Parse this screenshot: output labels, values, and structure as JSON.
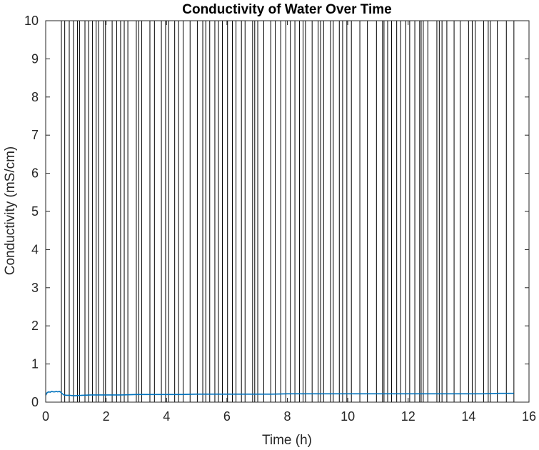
{
  "chart_data": {
    "type": "line",
    "title": "Conductivity of Water Over Time",
    "xlabel": "Time (h)",
    "ylabel": "Conductivity (mS/cm)",
    "xlim": [
      0,
      16
    ],
    "ylim": [
      0,
      10
    ],
    "xticks": [
      0,
      2,
      4,
      6,
      8,
      10,
      12,
      14,
      16
    ],
    "yticks": [
      0,
      1,
      2,
      3,
      4,
      5,
      6,
      7,
      8,
      9,
      10
    ],
    "grid": false,
    "series_color": "#0072BD",
    "vline_color": "#000000",
    "series": [
      {
        "x": [
          0.0,
          0.05,
          0.1,
          0.15,
          0.2,
          0.25,
          0.3,
          0.35,
          0.4,
          0.45,
          0.5,
          0.55,
          0.6,
          0.7,
          0.8,
          0.9,
          1.0,
          1.2,
          1.5,
          2.0,
          2.5,
          3.0,
          3.5,
          4.0,
          4.5,
          5.0,
          5.5,
          6.0,
          6.5,
          7.0,
          7.5,
          8.0,
          8.5,
          9.0,
          9.5,
          10.0,
          10.5,
          11.0,
          11.5,
          12.0,
          12.5,
          13.0,
          13.5,
          14.0,
          14.5,
          15.0,
          15.5
        ],
        "values": [
          0.18,
          0.25,
          0.27,
          0.26,
          0.28,
          0.27,
          0.27,
          0.28,
          0.27,
          0.28,
          0.26,
          0.22,
          0.19,
          0.18,
          0.18,
          0.17,
          0.17,
          0.18,
          0.19,
          0.19,
          0.19,
          0.2,
          0.2,
          0.2,
          0.2,
          0.21,
          0.21,
          0.21,
          0.21,
          0.21,
          0.21,
          0.22,
          0.22,
          0.22,
          0.22,
          0.22,
          0.22,
          0.22,
          0.22,
          0.22,
          0.22,
          0.22,
          0.22,
          0.22,
          0.22,
          0.23,
          0.23
        ]
      }
    ],
    "vertical_lines_x": [
      0.52,
      0.63,
      0.78,
      0.92,
      1.05,
      1.12,
      1.3,
      1.42,
      1.55,
      1.67,
      1.75,
      1.92,
      1.98,
      2.2,
      2.35,
      2.48,
      2.6,
      2.72,
      3.0,
      3.08,
      3.18,
      3.45,
      3.6,
      3.83,
      3.97,
      4.07,
      4.27,
      4.4,
      4.55,
      4.78,
      5.02,
      5.2,
      5.3,
      5.43,
      5.6,
      5.72,
      5.85,
      6.02,
      6.18,
      6.3,
      6.48,
      6.6,
      6.85,
      6.92,
      7.02,
      7.22,
      7.45,
      7.6,
      7.78,
      7.95,
      8.1,
      8.25,
      8.4,
      8.52,
      8.6,
      8.82,
      9.02,
      9.1,
      9.2,
      9.43,
      9.52,
      9.72,
      9.83,
      9.97,
      10.12,
      10.4,
      10.65,
      10.95,
      11.15,
      11.2,
      11.32,
      11.45,
      11.62,
      11.75,
      11.92,
      12.05,
      12.22,
      12.38,
      12.43,
      12.5,
      12.65,
      12.95,
      13.03,
      13.12,
      13.28,
      13.52,
      13.72,
      14.0,
      14.12,
      14.22,
      14.5,
      14.65,
      14.72,
      14.95,
      15.25,
      15.5
    ]
  }
}
